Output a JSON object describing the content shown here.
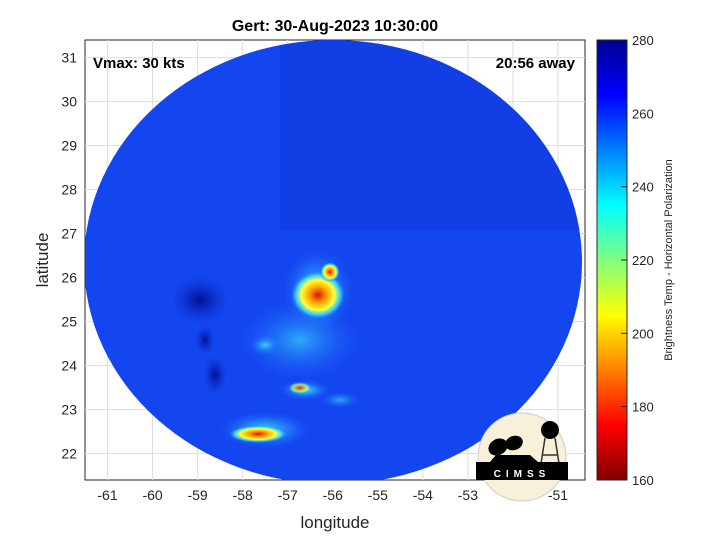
{
  "title": "Gert: 30-Aug-2023 10:30:00",
  "annotations": {
    "vmax": "Vmax: 30 kts",
    "away": "20:56 away"
  },
  "xaxis": {
    "label": "longitude",
    "ticks": [
      -61,
      -60,
      -59,
      -58,
      -57,
      -56,
      -55,
      -54,
      -53,
      -52,
      -51
    ],
    "range": [
      -61.5,
      -50.4
    ]
  },
  "yaxis": {
    "label": "latitude",
    "ticks": [
      22,
      23,
      24,
      25,
      26,
      27,
      28,
      29,
      30,
      31
    ],
    "range": [
      21.4,
      31.4
    ]
  },
  "colorbar": {
    "label": "Brightness Temp - Horizontal Polarization",
    "ticks": [
      160,
      180,
      200,
      220,
      240,
      260,
      280
    ],
    "range": [
      160,
      280
    ],
    "colormap": "jet"
  },
  "grid": true,
  "logo": "CIMSS",
  "colors": {
    "background_field": "#1446f0",
    "core": "#e81010"
  }
}
